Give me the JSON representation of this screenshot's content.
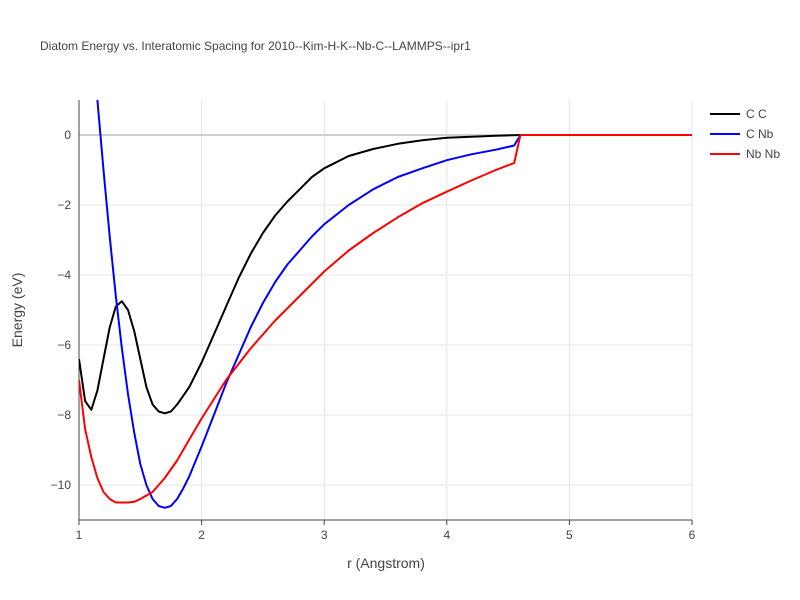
{
  "chart_data": {
    "type": "line",
    "title": "Diatom Energy vs. Interatomic Spacing for 2010--Kim-H-K--Nb-C--LAMMPS--ipr1",
    "xlabel": "r (Angstrom)",
    "ylabel": "Energy (eV)",
    "xlim": [
      1,
      6
    ],
    "ylim": [
      -11,
      1
    ],
    "xticks": [
      1,
      2,
      3,
      4,
      5,
      6
    ],
    "yticks": [
      0,
      -2,
      -4,
      -6,
      -8,
      -10
    ],
    "xtick_labels": [
      "1",
      "2",
      "3",
      "4",
      "5",
      "6"
    ],
    "ytick_labels": [
      "0",
      "−2",
      "−4",
      "−6",
      "−8",
      "−10"
    ],
    "grid": true,
    "legend_position": "top-right",
    "series": [
      {
        "name": "C C",
        "color": "#000000",
        "x": [
          1.0,
          1.05,
          1.1,
          1.15,
          1.2,
          1.25,
          1.3,
          1.35,
          1.4,
          1.45,
          1.5,
          1.55,
          1.6,
          1.65,
          1.7,
          1.75,
          1.8,
          1.85,
          1.9,
          2.0,
          2.1,
          2.2,
          2.3,
          2.4,
          2.5,
          2.6,
          2.7,
          2.8,
          2.9,
          3.0,
          3.2,
          3.4,
          3.6,
          3.8,
          4.0,
          4.2,
          4.4,
          4.6,
          4.8,
          5.0,
          5.5,
          6.0
        ],
        "values": [
          -6.4,
          -7.6,
          -7.85,
          -7.3,
          -6.4,
          -5.5,
          -4.9,
          -4.75,
          -5.0,
          -5.6,
          -6.4,
          -7.2,
          -7.7,
          -7.9,
          -7.95,
          -7.9,
          -7.7,
          -7.45,
          -7.2,
          -6.5,
          -5.7,
          -4.9,
          -4.1,
          -3.4,
          -2.8,
          -2.3,
          -1.9,
          -1.55,
          -1.2,
          -0.95,
          -0.6,
          -0.4,
          -0.25,
          -0.15,
          -0.08,
          -0.05,
          -0.02,
          0.0,
          0.0,
          0.0,
          0.0,
          0.0
        ]
      },
      {
        "name": "C Nb",
        "color": "#0000ff",
        "x": [
          1.15,
          1.2,
          1.25,
          1.3,
          1.35,
          1.4,
          1.45,
          1.5,
          1.55,
          1.6,
          1.65,
          1.7,
          1.75,
          1.8,
          1.85,
          1.9,
          2.0,
          2.1,
          2.2,
          2.3,
          2.4,
          2.5,
          2.6,
          2.7,
          2.8,
          2.9,
          3.0,
          3.2,
          3.4,
          3.6,
          3.8,
          4.0,
          4.2,
          4.4,
          4.55,
          4.6,
          4.8,
          5.0,
          5.5,
          6.0
        ],
        "values": [
          1.0,
          -1.0,
          -2.9,
          -4.6,
          -6.1,
          -7.4,
          -8.5,
          -9.4,
          -10.0,
          -10.4,
          -10.6,
          -10.65,
          -10.6,
          -10.4,
          -10.1,
          -9.75,
          -8.9,
          -8.0,
          -7.1,
          -6.3,
          -5.5,
          -4.8,
          -4.2,
          -3.7,
          -3.3,
          -2.9,
          -2.55,
          -2.0,
          -1.55,
          -1.2,
          -0.95,
          -0.72,
          -0.55,
          -0.42,
          -0.3,
          0.0,
          0.0,
          0.0,
          0.0,
          0.0
        ]
      },
      {
        "name": "Nb Nb",
        "color": "#ff0000",
        "x": [
          1.0,
          1.05,
          1.1,
          1.15,
          1.2,
          1.25,
          1.3,
          1.35,
          1.4,
          1.45,
          1.5,
          1.6,
          1.7,
          1.8,
          1.9,
          2.0,
          2.2,
          2.4,
          2.6,
          2.8,
          3.0,
          3.2,
          3.4,
          3.6,
          3.8,
          4.0,
          4.2,
          4.4,
          4.55,
          4.6,
          4.8,
          5.0,
          5.5,
          6.0
        ],
        "values": [
          -7.0,
          -8.4,
          -9.2,
          -9.8,
          -10.2,
          -10.4,
          -10.5,
          -10.5,
          -10.5,
          -10.48,
          -10.4,
          -10.2,
          -9.8,
          -9.3,
          -8.7,
          -8.1,
          -7.0,
          -6.1,
          -5.3,
          -4.6,
          -3.9,
          -3.3,
          -2.8,
          -2.35,
          -1.95,
          -1.62,
          -1.3,
          -1.0,
          -0.8,
          0.0,
          0.0,
          0.0,
          0.0,
          0.0
        ]
      }
    ]
  }
}
